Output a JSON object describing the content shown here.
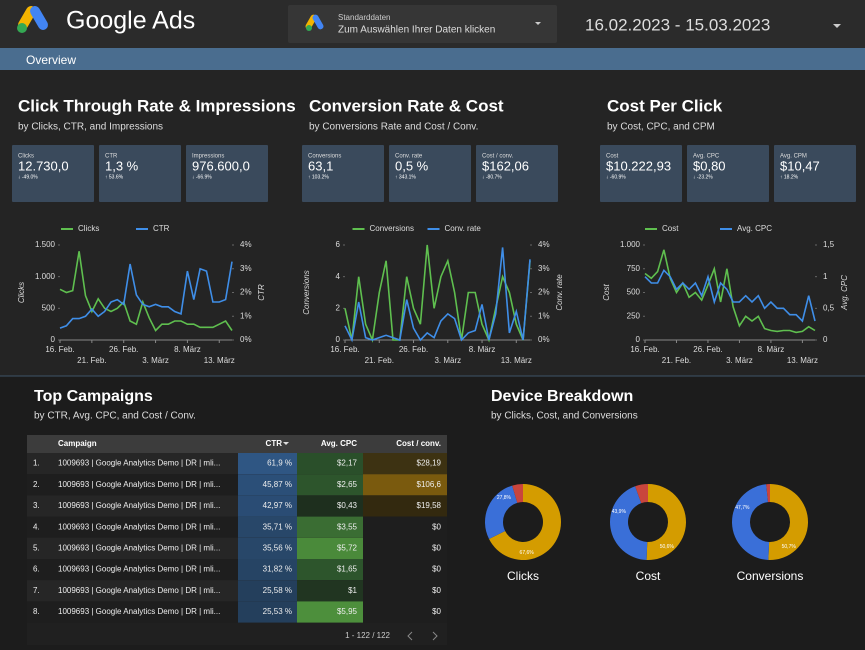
{
  "header": {
    "brand": "Google Ads",
    "data_source": {
      "title": "Standarddaten",
      "subtitle": "Zum Auswählen Ihrer Daten klicken"
    },
    "date_range": "16.02.2023 - 15.03.2023"
  },
  "tab": "Overview",
  "sections": [
    {
      "title": "Click Through Rate & Impressions",
      "subtitle": "by Clicks, CTR, and Impressions",
      "kpis": [
        {
          "label": "Clicks",
          "value": "12.730,0",
          "delta": "↓ -49.0%",
          "delta_color": "#e35b5b"
        },
        {
          "label": "CTR",
          "value": "1,3 %",
          "delta": "↑ 53.6%",
          "delta_color": "#6fcf6f"
        },
        {
          "label": "Impressions",
          "value": "976.600,0",
          "delta": "↓ -66.9%",
          "delta_color": "#e35b5b"
        }
      ],
      "chart": {
        "type": "line",
        "categories": [
          "16. Feb.",
          null,
          null,
          null,
          null,
          "21. Feb.",
          null,
          null,
          null,
          null,
          "26. Feb.",
          null,
          null,
          null,
          null,
          "3. März",
          null,
          null,
          null,
          null,
          "8. März",
          null,
          null,
          null,
          null,
          "13. März",
          null,
          null
        ],
        "series": [
          {
            "name": "Clicks",
            "color": "#5fbf4f",
            "values": [
              800,
              750,
              780,
              1400,
              700,
              450,
              650,
              500,
              450,
              500,
              600,
              300,
              250,
              600,
              350,
              150,
              250,
              250,
              300,
              300,
              250,
              250,
              200,
              200,
              200,
              250,
              300,
              150
            ]
          },
          {
            "name": "CTR",
            "color": "#3f8ee8",
            "axis": "y2",
            "values": [
              0.5,
              0.6,
              0.9,
              0.9,
              1.0,
              1.3,
              1.0,
              1.2,
              1.6,
              1.7,
              1.5,
              3.2,
              1.9,
              1.5,
              1.4,
              1.5,
              1.4,
              1.4,
              1.2,
              1.1,
              2.9,
              1.7,
              3.0,
              2.9,
              1.6,
              1.6,
              1.7,
              3.3
            ]
          }
        ],
        "ylabel": "Clicks",
        "y2label": "CTR",
        "ylim": [
          0,
          1500
        ],
        "yticks": [
          0,
          500,
          {
            "value": 1000,
            "label": "1.000"
          },
          {
            "value": 1500,
            "label": "1.500"
          }
        ],
        "y2lim": [
          0,
          4
        ],
        "y2ticks": [
          {
            "value": 0,
            "label": "0%"
          },
          {
            "value": 1,
            "label": "1%"
          },
          {
            "value": 2,
            "label": "2%"
          },
          {
            "value": 3,
            "label": "3%"
          },
          {
            "value": 4,
            "label": "4%"
          }
        ]
      }
    },
    {
      "title": "Conversion Rate & Cost",
      "subtitle": "by Conversions Rate and Cost / Conv.",
      "kpis": [
        {
          "label": "Conversions",
          "value": "63,1",
          "delta": "↑ 103.2%",
          "delta_color": "#6fcf6f"
        },
        {
          "label": "Conv. rate",
          "value": "0,5 %",
          "delta": "↑ 343.1%",
          "delta_color": "#6fcf6f"
        },
        {
          "label": "Cost / conv.",
          "value": "$162,06",
          "delta": "↓ -80.7%",
          "delta_color": "#6fcf6f"
        }
      ],
      "chart": {
        "type": "line",
        "categories": [
          "16. Feb.",
          null,
          null,
          null,
          null,
          "21. Feb.",
          null,
          null,
          null,
          null,
          "26. Feb.",
          null,
          null,
          null,
          null,
          "3. März",
          null,
          null,
          null,
          null,
          "8. März",
          null,
          null,
          null,
          null,
          "13. März",
          null,
          null
        ],
        "series": [
          {
            "name": "Conversions",
            "color": "#5fbf4f",
            "values": [
              2,
              0,
              4,
              1,
              0,
              3,
              5,
              0,
              0,
              4,
              2,
              1,
              6,
              2,
              4,
              5,
              3,
              0,
              3,
              3,
              1,
              0,
              2,
              4,
              3,
              1,
              0,
              5
            ]
          },
          {
            "name": "Conv. rate",
            "color": "#3f8ee8",
            "axis": "y2",
            "values": [
              0.6,
              0,
              1.6,
              0.1,
              0,
              0.1,
              0.2,
              0.1,
              0,
              1.7,
              0.5,
              0,
              0.3,
              0.1,
              0.8,
              1.1,
              0.9,
              0,
              0.3,
              0.4,
              1.5,
              0,
              1.1,
              3.9,
              0.3,
              1.2,
              0,
              3.4
            ]
          }
        ],
        "ylabel": "Conversions",
        "y2label": "Conv. rate",
        "ylim": [
          0,
          6
        ],
        "yticks": [
          0,
          2,
          4,
          6
        ],
        "y2lim": [
          0,
          4
        ],
        "y2ticks": [
          {
            "value": 0,
            "label": "0%"
          },
          {
            "value": 1,
            "label": "1%"
          },
          {
            "value": 2,
            "label": "2%"
          },
          {
            "value": 3,
            "label": "3%"
          },
          {
            "value": 4,
            "label": "4%"
          }
        ]
      }
    },
    {
      "title": "Cost Per Click",
      "subtitle": "by Cost, CPC, and CPM",
      "kpis": [
        {
          "label": "Cost",
          "value": "$10.222,93",
          "delta": "↓ -60.9%",
          "delta_color": "#6fcf6f"
        },
        {
          "label": "Avg. CPC",
          "value": "$0,80",
          "delta": "↓ -23.2%",
          "delta_color": "#6fcf6f"
        },
        {
          "label": "Avg. CPM",
          "value": "$10,47",
          "delta": "↑ 18.2%",
          "delta_color": "#e35b5b"
        }
      ],
      "chart": {
        "type": "line",
        "categories": [
          "16. Feb.",
          null,
          null,
          null,
          null,
          "21. Feb.",
          null,
          null,
          null,
          null,
          "26. Feb.",
          null,
          null,
          null,
          null,
          "3. März",
          null,
          null,
          null,
          null,
          "8. März",
          null,
          null,
          null,
          null,
          "13. März",
          null,
          null
        ],
        "series": [
          {
            "name": "Cost",
            "color": "#5fbf4f",
            "values": [
              700,
              650,
              720,
              950,
              650,
              500,
              600,
              450,
              500,
              420,
              580,
              750,
              400,
              750,
              350,
              150,
              250,
              200,
              250,
              120,
              100,
              90,
              100,
              100,
              80,
              90,
              140,
              100
            ]
          },
          {
            "name": "Avg. CPC",
            "color": "#3f8ee8",
            "axis": "y2",
            "values": [
              1.0,
              0.9,
              0.9,
              1.1,
              1.0,
              0.8,
              0.9,
              0.8,
              0.9,
              0.7,
              1.0,
              0.6,
              0.9,
              0.8,
              0.6,
              0.6,
              0.7,
              0.6,
              0.7,
              0.5,
              0.6,
              0.5,
              0.5,
              0.4,
              0.4,
              0.3,
              0.7,
              0.3
            ]
          }
        ],
        "ylabel": "Cost",
        "y2label": "Avg. CPC",
        "ylim": [
          0,
          1000
        ],
        "yticks": [
          0,
          250,
          500,
          750,
          {
            "value": 1000,
            "label": "1.000"
          }
        ],
        "y2lim": [
          0,
          1.5
        ],
        "y2ticks": [
          0,
          {
            "value": 0.5,
            "label": "0,5"
          },
          1,
          {
            "value": 1.5,
            "label": "1,5"
          }
        ]
      }
    }
  ],
  "campaigns": {
    "title": "Top Campaigns",
    "subtitle": "by CTR, Avg. CPC, and Cost / Conv.",
    "columns": [
      "Campaign",
      "CTR",
      "Avg. CPC",
      "Cost / conv."
    ],
    "rows": [
      [
        "1.",
        "1009693 | Google Analytics Demo | DR | mli...",
        "61,9 %",
        "$2,17",
        "$28,19"
      ],
      [
        "2.",
        "1009693 | Google Analytics Demo | DR | mli...",
        "45,87 %",
        "$2,65",
        "$106,6"
      ],
      [
        "3.",
        "1009693 | Google Analytics Demo | DR | mli...",
        "42,97 %",
        "$0,43",
        "$19,58"
      ],
      [
        "4.",
        "1009693 | Google Analytics Demo | DR | mli...",
        "35,71 %",
        "$3,55",
        "$0"
      ],
      [
        "5.",
        "1009693 | Google Analytics Demo | DR | mli...",
        "35,56 %",
        "$5,72",
        "$0"
      ],
      [
        "6.",
        "1009693 | Google Analytics Demo | DR | mli...",
        "31,82 %",
        "$1,65",
        "$0"
      ],
      [
        "7.",
        "1009693 | Google Analytics Demo | DR | mli...",
        "25,58 %",
        "$1",
        "$0"
      ],
      [
        "8.",
        "1009693 | Google Analytics Demo | DR | mli...",
        "25,53 %",
        "$5,95",
        "$0"
      ]
    ],
    "cell_colors": [
      [
        null,
        null,
        "#2f5683",
        "#2a4f2a",
        "#3d3212"
      ],
      [
        null,
        null,
        "#2b4f78",
        "#2d552c",
        "#7a5a0e"
      ],
      [
        null,
        null,
        "#2a4c74",
        "#1e2f1e",
        "#33290f"
      ],
      [
        null,
        null,
        "#284769",
        "#3a6d33",
        "#1e1e1e"
      ],
      [
        null,
        null,
        "#284769",
        "#4a8a3a",
        "#1e1e1e"
      ],
      [
        null,
        null,
        "#264464",
        "#2d552c",
        "#1e1e1e"
      ],
      [
        null,
        null,
        "#243f5c",
        "#213521",
        "#1e1e1e"
      ],
      [
        null,
        null,
        "#243f5c",
        "#4d8f3c",
        "#1e1e1e"
      ]
    ],
    "pagination": "1 - 122 / 122"
  },
  "devices": {
    "title": "Device Breakdown",
    "subtitle": "by Clicks, Cost, and Conversions",
    "charts": [
      {
        "type": "donut",
        "label": "Clicks",
        "values": [
          67.6,
          27.8,
          4.6
        ],
        "value_labels": [
          "67,6%",
          "27,8%",
          null
        ],
        "colors": [
          "#d49c00",
          "#3a6fd8",
          "#c9453d"
        ]
      },
      {
        "type": "donut",
        "label": "Cost",
        "values": [
          50.6,
          43.9,
          5.5
        ],
        "value_labels": [
          "50,6%",
          "43,9%",
          null
        ],
        "colors": [
          "#d49c00",
          "#3a6fd8",
          "#c9453d"
        ]
      },
      {
        "type": "donut",
        "label": "Conversions",
        "values": [
          50.7,
          47.7,
          1.6
        ],
        "value_labels": [
          "50,7%",
          "47,7%",
          null
        ],
        "colors": [
          "#d49c00",
          "#3a6fd8",
          "#c9453d"
        ]
      }
    ]
  }
}
